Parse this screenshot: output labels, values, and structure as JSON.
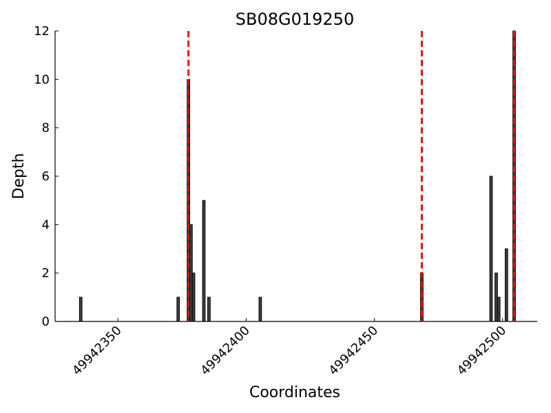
{
  "chart_data": {
    "type": "bar",
    "title": "SB08G019250",
    "xlabel": "Coordinates",
    "ylabel": "Depth",
    "x": [
      49942335,
      49942373,
      49942377,
      49942378,
      49942379,
      49942383,
      49942385,
      49942405,
      49942468,
      49942495,
      49942497,
      49942498,
      49942501,
      49942504
    ],
    "values": [
      1,
      1,
      10,
      4,
      2,
      5,
      1,
      1,
      2,
      6,
      2,
      1,
      3,
      12
    ],
    "color": "#404040",
    "xlim": [
      49942325.5,
      49942513.5
    ],
    "xticks": [
      49942350,
      49942400,
      49942450,
      49942500
    ],
    "ylim": [
      0,
      12
    ],
    "yticks": [
      0,
      2,
      4,
      6,
      8,
      10,
      12
    ],
    "vlines": [
      49942377.5,
      49942468.5,
      49942504.5
    ],
    "vline_color": "#ff0000"
  }
}
